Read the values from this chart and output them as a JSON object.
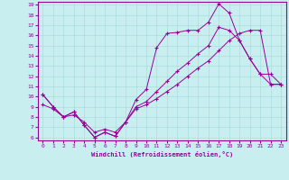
{
  "xlabel": "Windchill (Refroidissement éolien,°C)",
  "background_color": "#c8eef0",
  "line_color": "#990099",
  "grid_color": "#aadddd",
  "xmin": 0,
  "xmax": 23,
  "ymin": 6,
  "ymax": 19,
  "yticks": [
    6,
    7,
    8,
    9,
    10,
    11,
    12,
    13,
    14,
    15,
    16,
    17,
    18,
    19
  ],
  "xticks": [
    0,
    1,
    2,
    3,
    4,
    5,
    6,
    7,
    8,
    9,
    10,
    11,
    12,
    13,
    14,
    15,
    16,
    17,
    18,
    19,
    20,
    21,
    22,
    23
  ],
  "line1_y": [
    10.2,
    9.0,
    8.0,
    8.5,
    7.2,
    6.0,
    6.5,
    6.1,
    7.5,
    9.7,
    10.7,
    14.8,
    16.2,
    16.3,
    16.5,
    16.5,
    17.3,
    19.1,
    18.2,
    15.5,
    13.7,
    12.2,
    12.2,
    11.2
  ],
  "line2_y": [
    10.2,
    9.0,
    8.0,
    8.5,
    7.2,
    6.0,
    6.5,
    6.1,
    7.5,
    9.0,
    9.5,
    10.5,
    11.5,
    12.5,
    13.3,
    14.2,
    15.0,
    16.8,
    16.5,
    15.5,
    13.7,
    12.2,
    11.2,
    11.2
  ],
  "line3_y": [
    9.2,
    8.8,
    8.0,
    8.2,
    7.5,
    6.5,
    6.8,
    6.5,
    7.5,
    8.8,
    9.2,
    9.8,
    10.5,
    11.2,
    12.0,
    12.8,
    13.5,
    14.5,
    15.5,
    16.2,
    16.5,
    16.5,
    11.2,
    11.2
  ]
}
